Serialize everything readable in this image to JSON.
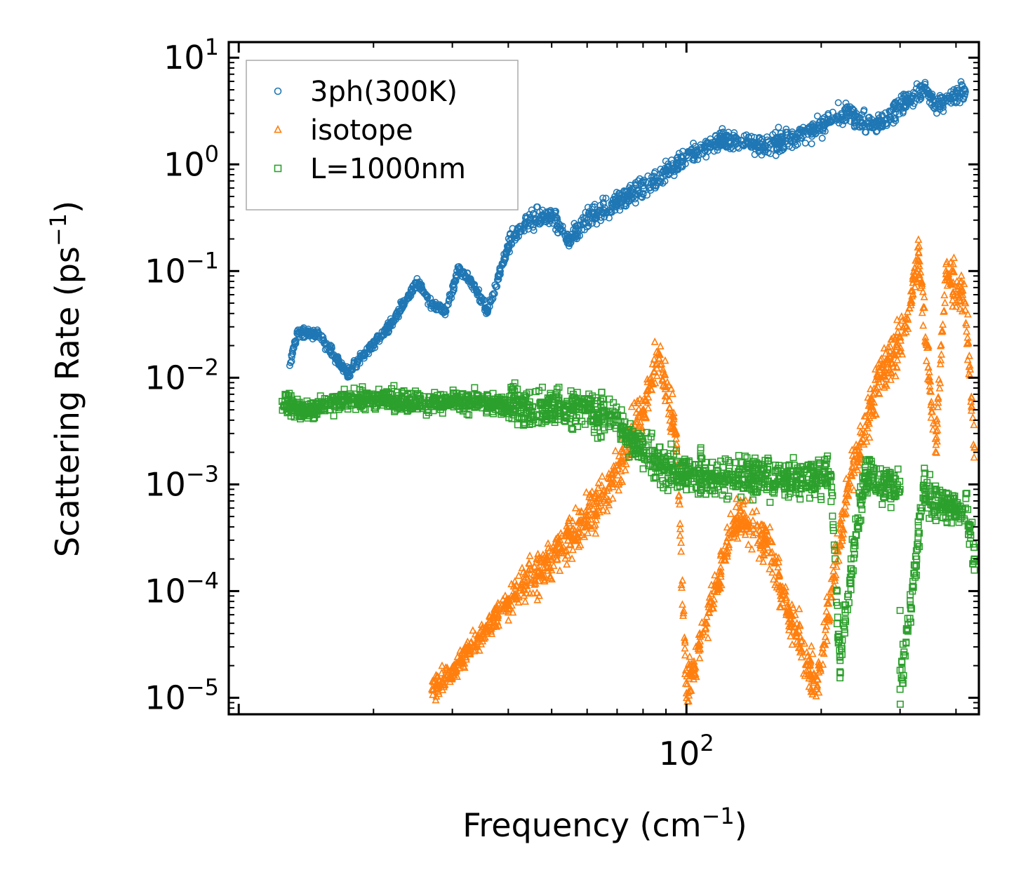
{
  "chart_data": {
    "type": "scatter",
    "xscale": "log",
    "yscale": "log",
    "xlim": [
      9.5,
      450
    ],
    "ylim": [
      7e-06,
      14
    ],
    "xlabel": {
      "base": "Frequency (cm",
      "sup": "−1",
      "close": ")"
    },
    "ylabel": {
      "base": "Scattering Rate (ps",
      "sup": "−1",
      "close": ")"
    },
    "x_major_ticks": [
      {
        "value": 100,
        "base": "10",
        "exp": "2"
      }
    ],
    "y_major_ticks": [
      {
        "value": 10,
        "base": "10",
        "exp": "1"
      },
      {
        "value": 1,
        "base": "10",
        "exp": "0"
      },
      {
        "value": 0.1,
        "base": "10",
        "exp": "−1"
      },
      {
        "value": 0.01,
        "base": "10",
        "exp": "−2"
      },
      {
        "value": 0.001,
        "base": "10",
        "exp": "−3"
      },
      {
        "value": 0.0001,
        "base": "10",
        "exp": "−4"
      },
      {
        "value": 1e-05,
        "base": "10",
        "exp": "−5"
      }
    ],
    "legend_position": "top-left",
    "series": [
      {
        "name": "3ph(300K)",
        "marker": "circle",
        "color": "#1f77b4",
        "sample_points": [
          [
            13,
            0.013
          ],
          [
            13.5,
            0.026
          ],
          [
            15,
            0.026
          ],
          [
            17.5,
            0.011
          ],
          [
            22,
            0.033
          ],
          [
            25,
            0.078
          ],
          [
            27,
            0.05
          ],
          [
            29,
            0.042
          ],
          [
            31,
            0.105
          ],
          [
            33,
            0.08
          ],
          [
            36,
            0.042
          ],
          [
            40,
            0.17
          ],
          [
            44,
            0.29
          ],
          [
            50,
            0.33
          ],
          [
            55,
            0.2
          ],
          [
            60,
            0.3
          ],
          [
            70,
            0.45
          ],
          [
            85,
            0.7
          ],
          [
            100,
            1.2
          ],
          [
            120,
            1.7
          ],
          [
            150,
            1.5
          ],
          [
            190,
            2.0
          ],
          [
            230,
            3.2
          ],
          [
            260,
            2.2
          ],
          [
            300,
            3.5
          ],
          [
            340,
            5.2
          ],
          [
            360,
            3.5
          ],
          [
            420,
            4.8
          ]
        ]
      },
      {
        "name": "isotope",
        "marker": "triangle",
        "color": "#ff7f0e",
        "sample_points": [
          [
            27,
            1.2e-05
          ],
          [
            30,
            1.7e-05
          ],
          [
            35,
            4e-05
          ],
          [
            40,
            8e-05
          ],
          [
            50,
            0.0002
          ],
          [
            60,
            0.0005
          ],
          [
            68,
            0.001
          ],
          [
            80,
            0.005
          ],
          [
            87,
            0.015
          ],
          [
            95,
            0.003
          ],
          [
            100,
            1.1e-05
          ],
          [
            110,
            5e-05
          ],
          [
            130,
            0.0005
          ],
          [
            150,
            0.0003
          ],
          [
            170,
            6e-05
          ],
          [
            195,
            1.2e-05
          ],
          [
            230,
            0.001
          ],
          [
            270,
            0.01
          ],
          [
            310,
            0.03
          ],
          [
            330,
            0.15
          ],
          [
            360,
            0.002
          ],
          [
            380,
            0.1
          ],
          [
            420,
            0.05
          ],
          [
            440,
            0.0022
          ]
        ]
      },
      {
        "name": "L=1000nm",
        "marker": "square",
        "color": "#2ca02c",
        "sample_points": [
          [
            12.5,
            0.006
          ],
          [
            14,
            0.0048
          ],
          [
            16,
            0.0058
          ],
          [
            18,
            0.0064
          ],
          [
            22,
            0.0062
          ],
          [
            26,
            0.0058
          ],
          [
            30,
            0.0059
          ],
          [
            35,
            0.0058
          ],
          [
            40,
            0.0055
          ],
          [
            50,
            0.0052
          ],
          [
            60,
            0.005
          ],
          [
            70,
            0.004
          ],
          [
            80,
            0.002
          ],
          [
            90,
            0.0015
          ],
          [
            100,
            0.0012
          ],
          [
            120,
            0.0012
          ],
          [
            150,
            0.0012
          ],
          [
            180,
            0.0011
          ],
          [
            210,
            0.0012
          ],
          [
            250,
            0.0012
          ],
          [
            300,
            0.0009
          ],
          [
            340,
            0.0009
          ],
          [
            380,
            0.0006
          ],
          [
            420,
            0.0006
          ],
          [
            440,
            0.0002
          ],
          [
            300,
            1.2e-05
          ],
          [
            220,
            2.4e-05
          ]
        ]
      }
    ]
  }
}
